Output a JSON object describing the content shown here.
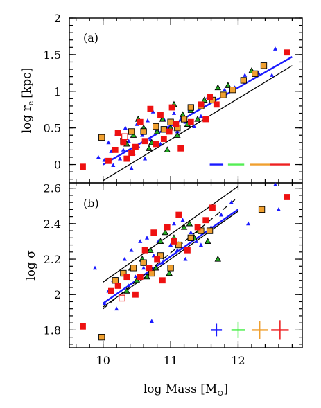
{
  "chart_data": [
    {
      "type": "scatter",
      "panel_label": "(a)",
      "ylabel": "log r",
      "ylabel_sub": "e",
      "ylabel_unit": "[kpc]",
      "xlim": [
        9.5,
        12.95
      ],
      "ylim": [
        -0.25,
        2.0
      ],
      "yticks": [
        0,
        0.5,
        1,
        1.5,
        2
      ],
      "ytick_labels": [
        "0",
        "0.5",
        "1",
        "1.5",
        "2"
      ],
      "grid": false,
      "colors": {
        "blue": "#1a1aff",
        "green": "#22aa22",
        "orange": "#f0a030",
        "red": "#ee1111"
      },
      "series": [
        {
          "marker": "triangle",
          "color": "#1a1aff",
          "points": [
            [
              9.93,
              0.1
            ],
            [
              9.97,
              0.38
            ],
            [
              10.02,
              0.06
            ],
            [
              10.08,
              0.3
            ],
            [
              10.12,
              0.18
            ],
            [
              10.15,
              -0.01
            ],
            [
              10.2,
              0.42
            ],
            [
              10.25,
              0.08
            ],
            [
              10.3,
              0.2
            ],
            [
              10.33,
              0.5
            ],
            [
              10.38,
              0.32
            ],
            [
              10.42,
              -0.05
            ],
            [
              10.45,
              0.15
            ],
            [
              10.5,
              0.55
            ],
            [
              10.52,
              0.25
            ],
            [
              10.58,
              0.4
            ],
            [
              10.62,
              0.08
            ],
            [
              10.66,
              0.6
            ],
            [
              10.7,
              0.34
            ],
            [
              10.74,
              0.72
            ],
            [
              10.8,
              0.48
            ],
            [
              10.85,
              0.28
            ],
            [
              10.9,
              0.62
            ],
            [
              10.95,
              0.5
            ],
            [
              11.0,
              0.55
            ],
            [
              11.05,
              0.7
            ],
            [
              11.1,
              0.45
            ],
            [
              11.15,
              0.62
            ],
            [
              11.22,
              0.58
            ],
            [
              11.28,
              0.74
            ],
            [
              11.35,
              0.52
            ],
            [
              11.45,
              0.66
            ],
            [
              11.55,
              0.92
            ],
            [
              11.65,
              0.88
            ],
            [
              11.8,
              1.02
            ],
            [
              11.95,
              1.05
            ],
            [
              12.1,
              1.22
            ],
            [
              12.3,
              1.25
            ],
            [
              12.5,
              1.22
            ],
            [
              12.55,
              1.58
            ]
          ]
        },
        {
          "marker": "triangle",
          "color": "#22aa22",
          "points": [
            [
              10.35,
              0.28
            ],
            [
              10.45,
              0.4
            ],
            [
              10.52,
              0.62
            ],
            [
              10.6,
              0.5
            ],
            [
              10.68,
              0.22
            ],
            [
              10.72,
              0.3
            ],
            [
              10.8,
              0.45
            ],
            [
              10.88,
              0.62
            ],
            [
              10.95,
              0.2
            ],
            [
              11.0,
              0.5
            ],
            [
              11.05,
              0.82
            ],
            [
              11.1,
              0.4
            ],
            [
              11.18,
              0.68
            ],
            [
              11.25,
              0.55
            ],
            [
              11.3,
              0.74
            ],
            [
              11.4,
              0.62
            ],
            [
              11.5,
              0.88
            ],
            [
              11.7,
              1.05
            ],
            [
              11.85,
              1.08
            ],
            [
              12.2,
              1.28
            ]
          ]
        },
        {
          "marker": "square",
          "color": "#f0a030",
          "points": [
            [
              9.98,
              0.37
            ],
            [
              10.3,
              0.32
            ],
            [
              10.42,
              0.45
            ],
            [
              10.6,
              0.45
            ],
            [
              10.78,
              0.52
            ],
            [
              10.9,
              0.48
            ],
            [
              11.0,
              0.58
            ],
            [
              11.1,
              0.5
            ],
            [
              11.2,
              0.62
            ],
            [
              11.3,
              0.78
            ],
            [
              11.45,
              0.8
            ],
            [
              11.62,
              0.88
            ],
            [
              11.78,
              0.95
            ],
            [
              11.92,
              1.02
            ],
            [
              12.08,
              1.15
            ],
            [
              12.25,
              1.24
            ],
            [
              12.38,
              1.35
            ]
          ]
        },
        {
          "marker": "square",
          "color": "#ee1111",
          "points": [
            [
              9.7,
              -0.03
            ],
            [
              10.08,
              0.05
            ],
            [
              10.18,
              0.2
            ],
            [
              10.22,
              0.43
            ],
            [
              10.3,
              0.3
            ],
            [
              10.35,
              0.08
            ],
            [
              10.42,
              0.16
            ],
            [
              10.48,
              0.24
            ],
            [
              10.55,
              0.58
            ],
            [
              10.62,
              0.32
            ],
            [
              10.7,
              0.76
            ],
            [
              10.78,
              0.28
            ],
            [
              10.85,
              0.68
            ],
            [
              10.9,
              0.35
            ],
            [
              10.98,
              0.45
            ],
            [
              11.02,
              0.78
            ],
            [
              11.08,
              0.55
            ],
            [
              11.15,
              0.22
            ],
            [
              11.3,
              0.58
            ],
            [
              11.45,
              0.82
            ],
            [
              11.52,
              0.62
            ],
            [
              11.58,
              0.92
            ],
            [
              11.68,
              0.82
            ],
            [
              12.72,
              1.53
            ]
          ]
        },
        {
          "marker": "square-open",
          "color": "#ee1111",
          "points": [
            [
              10.32,
              0.38
            ]
          ]
        }
      ],
      "fit_lines": [
        {
          "color": "#1a1aff",
          "x": [
            10.0,
            12.8
          ],
          "y": [
            0.0,
            1.47
          ]
        },
        {
          "color": "#000000",
          "x": [
            10.0,
            12.8
          ],
          "y": [
            -0.22,
            1.35
          ]
        }
      ],
      "error_bars": [
        {
          "color": "#1a1aff",
          "x": 11.68,
          "y": 0.0,
          "xerr": 0.1,
          "yerr": 0.0
        },
        {
          "color": "#55ee55",
          "x": 11.97,
          "y": 0.0,
          "xerr": 0.12,
          "yerr": 0.0
        },
        {
          "color": "#f0a030",
          "x": 12.32,
          "y": 0.0,
          "xerr": 0.15,
          "yerr": 0.0
        },
        {
          "color": "#ee2222",
          "x": 12.62,
          "y": 0.0,
          "xerr": 0.15,
          "yerr": 0.0
        }
      ]
    },
    {
      "type": "scatter",
      "panel_label": "(b)",
      "ylabel": "log σ",
      "xlabel": "log Mass [M",
      "xlabel_sub": "⊙",
      "xlabel_end": "]",
      "xlim": [
        9.5,
        12.95
      ],
      "ylim": [
        1.7,
        2.63
      ],
      "xticks": [
        10,
        11,
        12
      ],
      "xtick_labels": [
        "10",
        "11",
        "12"
      ],
      "yticks": [
        1.8,
        2.0,
        2.2,
        2.4,
        2.6
      ],
      "ytick_labels": [
        "1.8",
        "2",
        "2.2",
        "2.4",
        "2.6"
      ],
      "grid": false,
      "series": [
        {
          "marker": "triangle",
          "color": "#1a1aff",
          "points": [
            [
              9.88,
              2.15
            ],
            [
              10.02,
              1.95
            ],
            [
              10.08,
              2.02
            ],
            [
              10.15,
              2.08
            ],
            [
              10.2,
              1.92
            ],
            [
              10.28,
              2.12
            ],
            [
              10.32,
              2.2
            ],
            [
              10.38,
              2.05
            ],
            [
              10.42,
              2.25
            ],
            [
              10.48,
              2.1
            ],
            [
              10.55,
              2.3
            ],
            [
              10.6,
              2.15
            ],
            [
              10.65,
              2.32
            ],
            [
              10.72,
              1.85
            ],
            [
              10.75,
              2.22
            ],
            [
              10.82,
              2.3
            ],
            [
              10.88,
              2.18
            ],
            [
              10.92,
              2.35
            ],
            [
              11.0,
              2.28
            ],
            [
              11.05,
              2.4
            ],
            [
              11.1,
              2.25
            ],
            [
              11.18,
              2.42
            ],
            [
              11.22,
              2.2
            ],
            [
              11.3,
              2.35
            ],
            [
              11.38,
              2.3
            ],
            [
              11.45,
              2.28
            ],
            [
              11.6,
              2.38
            ],
            [
              11.75,
              2.45
            ],
            [
              11.9,
              2.52
            ],
            [
              12.15,
              2.4
            ],
            [
              12.55,
              2.62
            ],
            [
              12.6,
              2.48
            ]
          ]
        },
        {
          "marker": "triangle",
          "color": "#22aa22",
          "points": [
            [
              10.35,
              2.02
            ],
            [
              10.42,
              2.15
            ],
            [
              10.5,
              2.08
            ],
            [
              10.58,
              2.2
            ],
            [
              10.65,
              2.1
            ],
            [
              10.7,
              2.25
            ],
            [
              10.78,
              2.15
            ],
            [
              10.85,
              2.3
            ],
            [
              10.92,
              2.35
            ],
            [
              10.98,
              2.12
            ],
            [
              11.05,
              2.32
            ],
            [
              11.12,
              2.28
            ],
            [
              11.2,
              2.38
            ],
            [
              11.28,
              2.4
            ],
            [
              11.35,
              2.32
            ],
            [
              11.42,
              2.36
            ],
            [
              11.55,
              2.3
            ],
            [
              11.7,
              2.2
            ]
          ]
        },
        {
          "marker": "square",
          "color": "#f0a030",
          "points": [
            [
              9.98,
              1.76
            ],
            [
              10.18,
              2.08
            ],
            [
              10.3,
              2.12
            ],
            [
              10.45,
              2.15
            ],
            [
              10.6,
              2.18
            ],
            [
              10.72,
              2.12
            ],
            [
              10.85,
              2.22
            ],
            [
              11.0,
              2.15
            ],
            [
              11.12,
              2.28
            ],
            [
              11.3,
              2.32
            ],
            [
              11.45,
              2.36
            ],
            [
              11.58,
              2.36
            ],
            [
              12.35,
              2.48
            ]
          ]
        },
        {
          "marker": "square",
          "color": "#ee1111",
          "points": [
            [
              9.7,
              1.82
            ],
            [
              10.12,
              2.02
            ],
            [
              10.22,
              2.05
            ],
            [
              10.35,
              2.1
            ],
            [
              10.48,
              2.0
            ],
            [
              10.55,
              2.1
            ],
            [
              10.62,
              2.25
            ],
            [
              10.68,
              2.15
            ],
            [
              10.75,
              2.35
            ],
            [
              10.8,
              2.2
            ],
            [
              10.88,
              2.08
            ],
            [
              10.95,
              2.38
            ],
            [
              11.05,
              2.3
            ],
            [
              11.12,
              2.45
            ],
            [
              11.25,
              2.25
            ],
            [
              11.4,
              2.38
            ],
            [
              11.52,
              2.42
            ],
            [
              11.62,
              2.49
            ],
            [
              12.72,
              2.55
            ]
          ]
        },
        {
          "marker": "square-open",
          "color": "#ee1111",
          "points": [
            [
              10.28,
              1.98
            ]
          ]
        }
      ],
      "fit_lines": [
        {
          "color": "#1a1aff",
          "x": [
            10.0,
            12.0
          ],
          "y": [
            1.95,
            2.48
          ]
        },
        {
          "color": "#000000",
          "dash": true,
          "x": [
            10.0,
            12.0
          ],
          "y": [
            1.92,
            2.55
          ]
        },
        {
          "color": "#000000",
          "x": [
            10.0,
            12.0
          ],
          "y": [
            2.07,
            2.61
          ]
        },
        {
          "color": "#000000",
          "x": [
            10.0,
            12.0
          ],
          "y": [
            1.93,
            2.47
          ]
        }
      ],
      "error_bars": [
        {
          "color": "#1a1aff",
          "x": 11.68,
          "y": 1.8,
          "xerr": 0.08,
          "yerr": 0.035
        },
        {
          "color": "#44ee44",
          "x": 12.0,
          "y": 1.8,
          "xerr": 0.1,
          "yerr": 0.045
        },
        {
          "color": "#f0a030",
          "x": 12.32,
          "y": 1.8,
          "xerr": 0.12,
          "yerr": 0.05
        },
        {
          "color": "#ee2222",
          "x": 12.62,
          "y": 1.8,
          "xerr": 0.13,
          "yerr": 0.055
        }
      ]
    }
  ]
}
